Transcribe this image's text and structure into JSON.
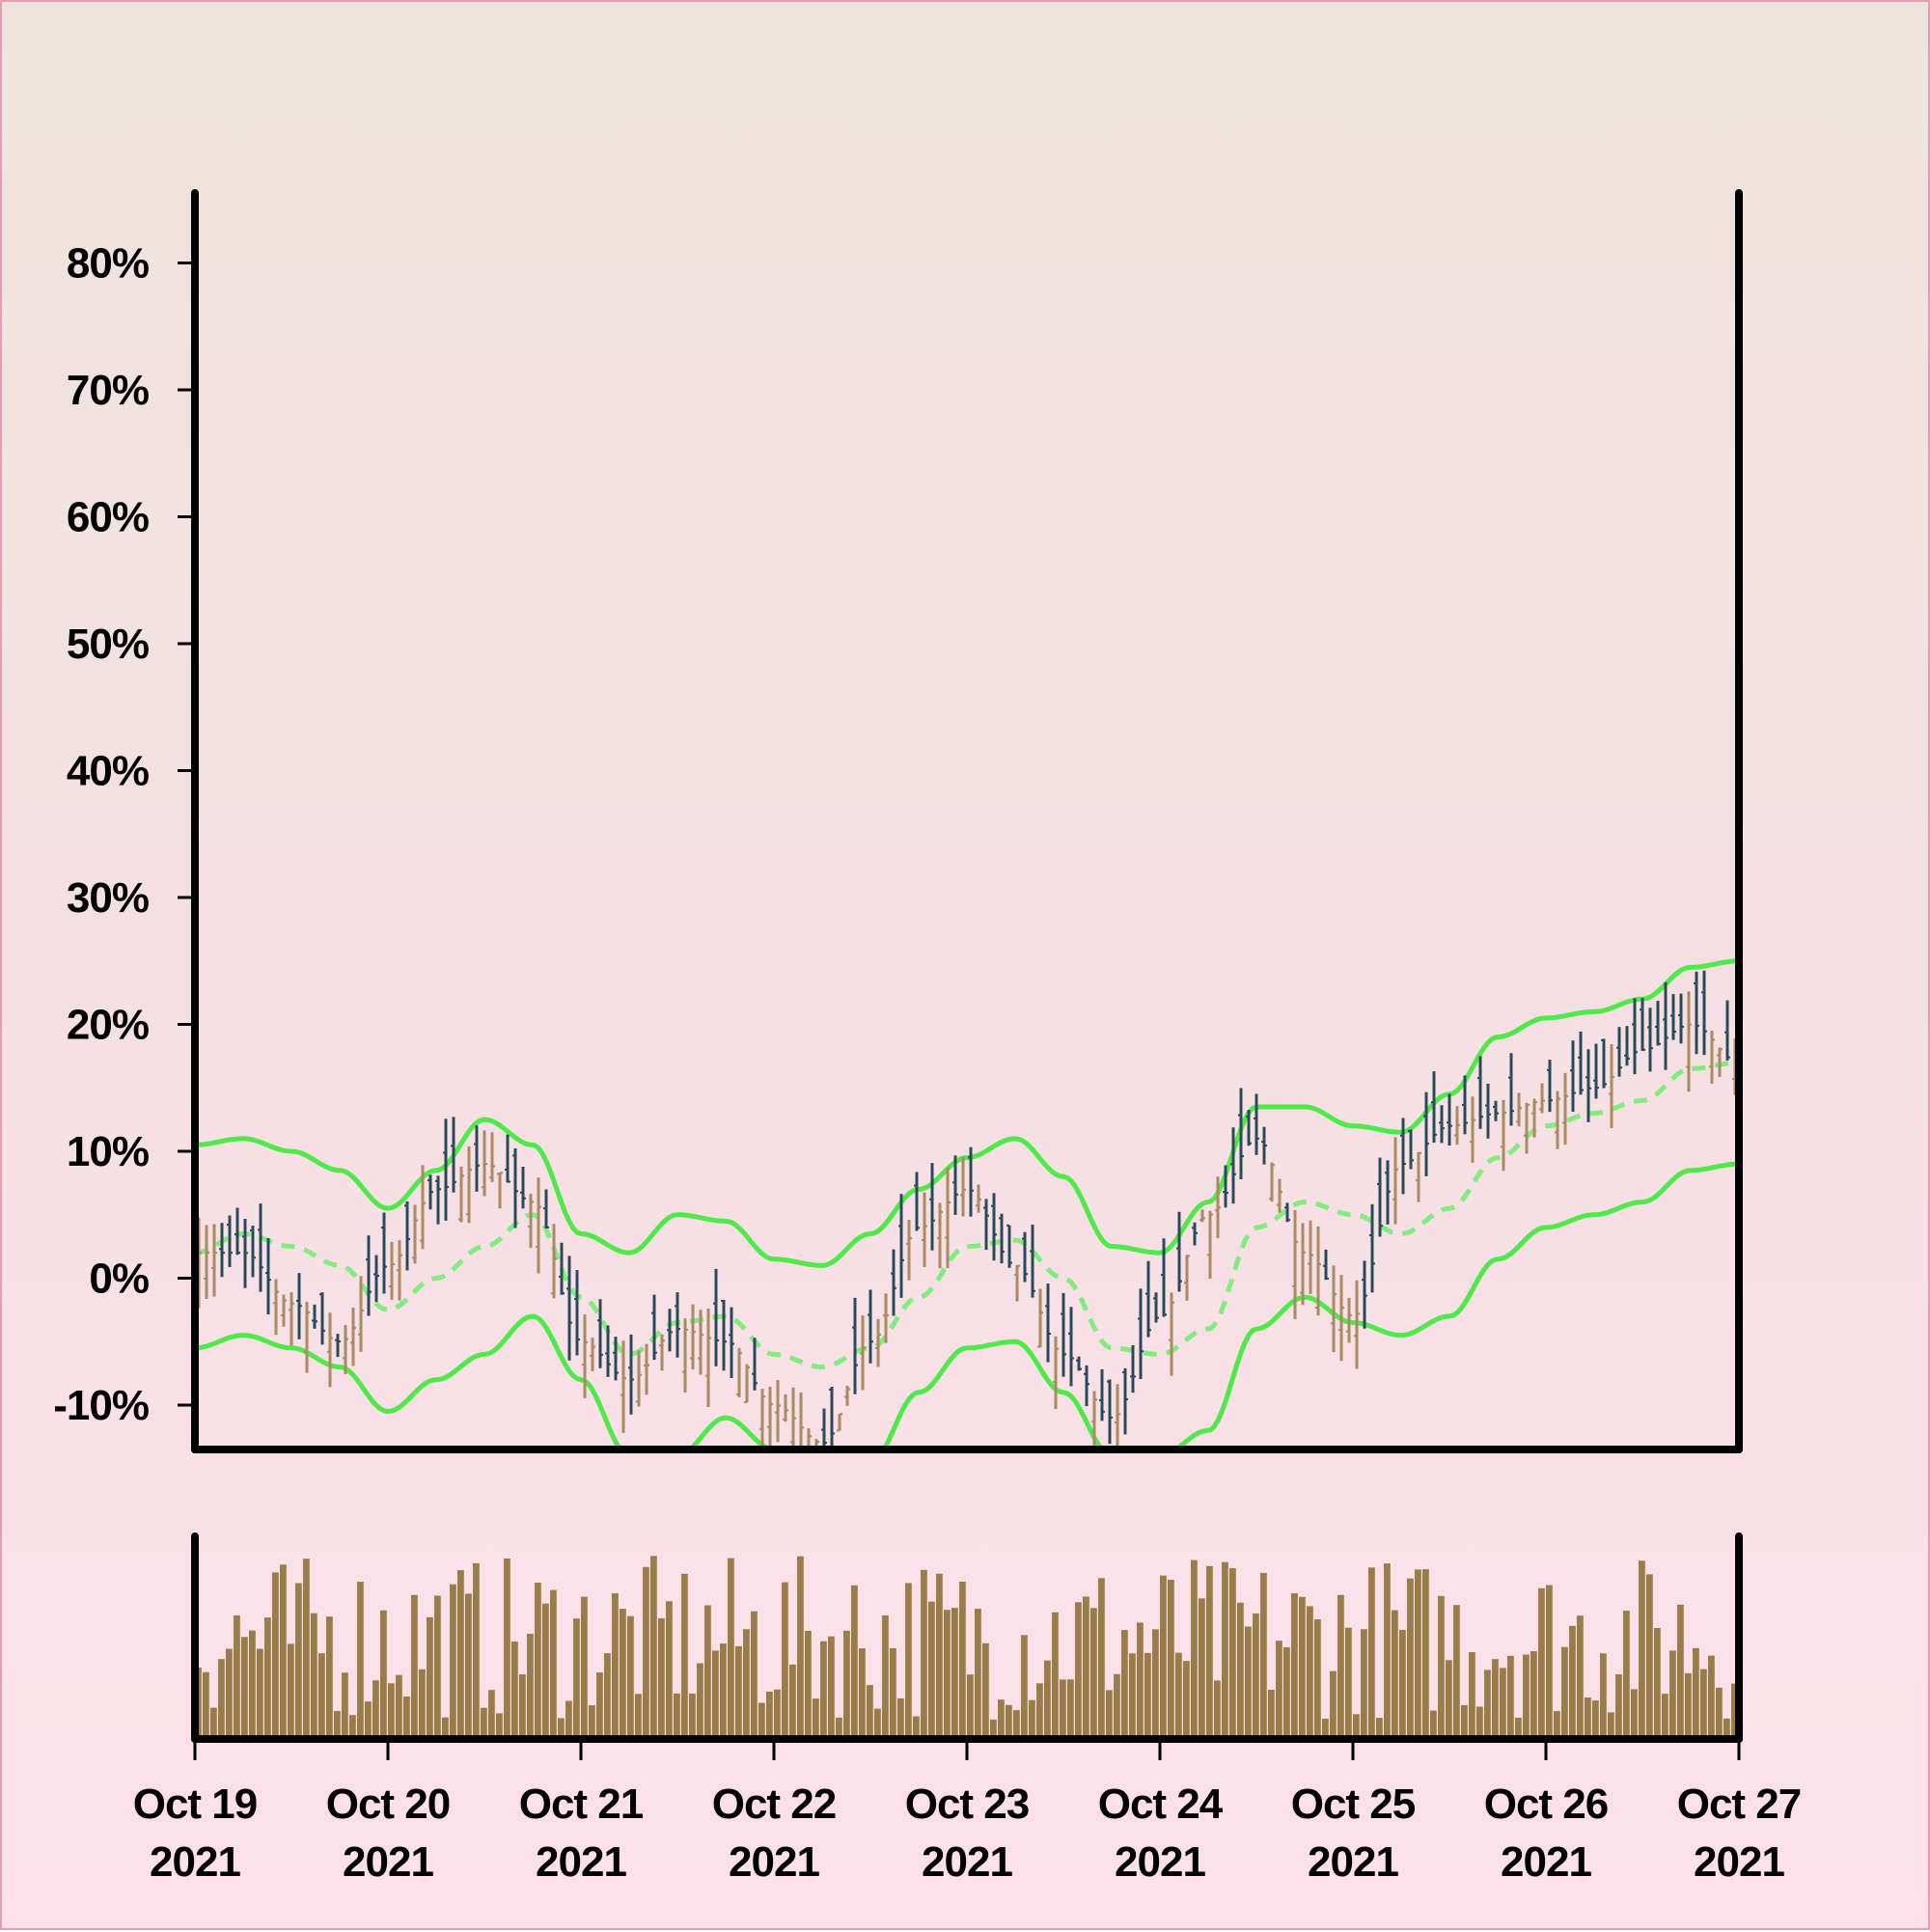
{
  "chart_data": {
    "type": "ohlc",
    "title": "",
    "xlabel": "",
    "ylabel": "",
    "y_axis": {
      "format": "percent",
      "ylim": [
        -13.5,
        86.5
      ],
      "ticks": [
        "-10%",
        "0%",
        "10%",
        "20%",
        "30%",
        "40%",
        "50%",
        "60%",
        "70%",
        "80%"
      ]
    },
    "x_axis": {
      "range": [
        "2021-10-19",
        "2021-10-27"
      ],
      "ticks": [
        {
          "date": "2021-10-19",
          "line1": "Oct 19",
          "line2": "2021"
        },
        {
          "date": "2021-10-20",
          "line1": "Oct 20",
          "line2": "2021"
        },
        {
          "date": "2021-10-21",
          "line1": "Oct 21",
          "line2": "2021"
        },
        {
          "date": "2021-10-22",
          "line1": "Oct 22",
          "line2": "2021"
        },
        {
          "date": "2021-10-23",
          "line1": "Oct 23",
          "line2": "2021"
        },
        {
          "date": "2021-10-24",
          "line1": "Oct 24",
          "line2": "2021"
        },
        {
          "date": "2021-10-25",
          "line1": "Oct 25",
          "line2": "2021"
        },
        {
          "date": "2021-10-26",
          "line1": "Oct 26",
          "line2": "2021"
        },
        {
          "date": "2021-10-27",
          "line1": "Oct 27",
          "line2": "2021"
        }
      ]
    },
    "close_path": [
      [
        "2021-10-19",
        2
      ],
      [
        "2021-10-19 06:00",
        2
      ],
      [
        "2021-10-19 12:00",
        -2
      ],
      [
        "2021-10-19 18:00",
        -5
      ],
      [
        "2021-10-20",
        1
      ],
      [
        "2021-10-20 06:00",
        7
      ],
      [
        "2021-10-20 12:00",
        9
      ],
      [
        "2021-10-20 18:00",
        6
      ],
      [
        "2021-10-21",
        -5
      ],
      [
        "2021-10-21 06:00",
        -8
      ],
      [
        "2021-10-21 12:00",
        -4
      ],
      [
        "2021-10-21 18:00",
        -5
      ],
      [
        "2021-10-22",
        -10
      ],
      [
        "2021-10-22 06:00",
        -13
      ],
      [
        "2021-10-22 12:00",
        -5
      ],
      [
        "2021-10-22 18:00",
        4
      ],
      [
        "2021-10-23",
        7
      ],
      [
        "2021-10-23 06:00",
        1
      ],
      [
        "2021-10-23 12:00",
        -6
      ],
      [
        "2021-10-23 18:00",
        -11
      ],
      [
        "2021-10-24",
        -3
      ],
      [
        "2021-10-24 06:00",
        5
      ],
      [
        "2021-10-24 12:00",
        11
      ],
      [
        "2021-10-24 18:00",
        2
      ],
      [
        "2021-10-25",
        -3
      ],
      [
        "2021-10-25 06:00",
        9
      ],
      [
        "2021-10-25 12:00",
        12
      ],
      [
        "2021-10-25 18:00",
        13
      ],
      [
        "2021-10-26",
        14
      ],
      [
        "2021-10-26 06:00",
        15
      ],
      [
        "2021-10-26 12:00",
        18
      ],
      [
        "2021-10-26 18:00",
        20
      ],
      [
        "2021-10-27",
        17
      ]
    ],
    "bands": {
      "type": "Bollinger-style envelope",
      "middle": [
        [
          "2021-10-19",
          2
        ],
        [
          "2021-10-19 06:00",
          3.5
        ],
        [
          "2021-10-19 12:00",
          2.5
        ],
        [
          "2021-10-19 18:00",
          1
        ],
        [
          "2021-10-20",
          -2.5
        ],
        [
          "2021-10-20 06:00",
          0
        ],
        [
          "2021-10-20 12:00",
          2.5
        ],
        [
          "2021-10-20 18:00",
          5
        ],
        [
          "2021-10-21",
          -1.5
        ],
        [
          "2021-10-21 06:00",
          -6
        ],
        [
          "2021-10-21 12:00",
          -3.5
        ],
        [
          "2021-10-21 18:00",
          -3
        ],
        [
          "2021-10-22",
          -6
        ],
        [
          "2021-10-22 06:00",
          -7
        ],
        [
          "2021-10-22 12:00",
          -5.5
        ],
        [
          "2021-10-22 18:00",
          -1.5
        ],
        [
          "2021-10-23",
          2.5
        ],
        [
          "2021-10-23 06:00",
          3
        ],
        [
          "2021-10-23 12:00",
          0
        ],
        [
          "2021-10-23 18:00",
          -5.5
        ],
        [
          "2021-10-24",
          -6
        ],
        [
          "2021-10-24 06:00",
          -4
        ],
        [
          "2021-10-24 12:00",
          4
        ],
        [
          "2021-10-24 18:00",
          6
        ],
        [
          "2021-10-25",
          5
        ],
        [
          "2021-10-25 06:00",
          3.5
        ],
        [
          "2021-10-25 12:00",
          5.5
        ],
        [
          "2021-10-25 18:00",
          9.5
        ],
        [
          "2021-10-26",
          12
        ],
        [
          "2021-10-26 06:00",
          13
        ],
        [
          "2021-10-26 12:00",
          14
        ],
        [
          "2021-10-26 18:00",
          16.5
        ],
        [
          "2021-10-27",
          17
        ]
      ],
      "upper": [
        [
          "2021-10-19",
          10.5
        ],
        [
          "2021-10-19 06:00",
          11
        ],
        [
          "2021-10-19 12:00",
          10
        ],
        [
          "2021-10-19 18:00",
          8.5
        ],
        [
          "2021-10-20",
          5.5
        ],
        [
          "2021-10-20 06:00",
          8.5
        ],
        [
          "2021-10-20 12:00",
          12.5
        ],
        [
          "2021-10-20 18:00",
          10.5
        ],
        [
          "2021-10-21",
          3.5
        ],
        [
          "2021-10-21 06:00",
          2
        ],
        [
          "2021-10-21 12:00",
          5
        ],
        [
          "2021-10-21 18:00",
          4.5
        ],
        [
          "2021-10-22",
          1.5
        ],
        [
          "2021-10-22 06:00",
          1
        ],
        [
          "2021-10-22 12:00",
          3.5
        ],
        [
          "2021-10-22 18:00",
          7
        ],
        [
          "2021-10-23",
          9.5
        ],
        [
          "2021-10-23 06:00",
          11
        ],
        [
          "2021-10-23 12:00",
          8
        ],
        [
          "2021-10-23 18:00",
          2.5
        ],
        [
          "2021-10-24",
          2
        ],
        [
          "2021-10-24 06:00",
          6
        ],
        [
          "2021-10-24 12:00",
          13.5
        ],
        [
          "2021-10-24 18:00",
          13.5
        ],
        [
          "2021-10-25",
          12
        ],
        [
          "2021-10-25 06:00",
          11.5
        ],
        [
          "2021-10-25 12:00",
          14.5
        ],
        [
          "2021-10-25 18:00",
          19
        ],
        [
          "2021-10-26",
          20.5
        ],
        [
          "2021-10-26 06:00",
          21
        ],
        [
          "2021-10-26 12:00",
          22
        ],
        [
          "2021-10-26 18:00",
          24.5
        ],
        [
          "2021-10-27",
          25
        ]
      ],
      "lower": [
        [
          "2021-10-19",
          -5.5
        ],
        [
          "2021-10-19 06:00",
          -4.5
        ],
        [
          "2021-10-19 12:00",
          -5.5
        ],
        [
          "2021-10-19 18:00",
          -7
        ],
        [
          "2021-10-20",
          -10.5
        ],
        [
          "2021-10-20 06:00",
          -8
        ],
        [
          "2021-10-20 12:00",
          -6
        ],
        [
          "2021-10-20 18:00",
          -3
        ],
        [
          "2021-10-21",
          -8
        ],
        [
          "2021-10-21 06:00",
          -14
        ],
        [
          "2021-10-21 12:00",
          -14
        ],
        [
          "2021-10-21 18:00",
          -11
        ],
        [
          "2021-10-22",
          -13.5
        ],
        [
          "2021-10-22 06:00",
          -17
        ],
        [
          "2021-10-22 12:00",
          -14.5
        ],
        [
          "2021-10-22 18:00",
          -9
        ],
        [
          "2021-10-23",
          -5.5
        ],
        [
          "2021-10-23 06:00",
          -5
        ],
        [
          "2021-10-23 12:00",
          -9
        ],
        [
          "2021-10-23 18:00",
          -14
        ],
        [
          "2021-10-24",
          -14
        ],
        [
          "2021-10-24 06:00",
          -12
        ],
        [
          "2021-10-24 12:00",
          -4
        ],
        [
          "2021-10-24 18:00",
          -1.5
        ],
        [
          "2021-10-25",
          -3.5
        ],
        [
          "2021-10-25 06:00",
          -4.5
        ],
        [
          "2021-10-25 12:00",
          -3
        ],
        [
          "2021-10-25 18:00",
          1.5
        ],
        [
          "2021-10-26",
          4
        ],
        [
          "2021-10-26 06:00",
          5
        ],
        [
          "2021-10-26 12:00",
          6
        ],
        [
          "2021-10-26 18:00",
          8.5
        ],
        [
          "2021-10-27",
          9
        ]
      ]
    },
    "bars_count": 200,
    "volume": {
      "panel": "lower",
      "unlabeled": true,
      "range": [
        0,
        1
      ]
    }
  },
  "colors": {
    "up": "#a98a63",
    "down": "#2c4b5a",
    "band": "#4fe94a",
    "middle_band": "#83ec7e",
    "volume": "#9a7c48",
    "axis": "#000000"
  }
}
